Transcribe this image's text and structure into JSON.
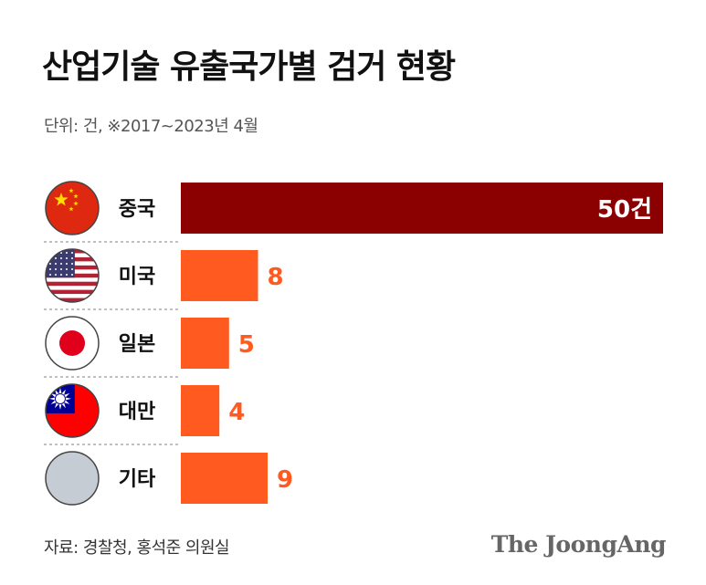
{
  "chart_data": {
    "type": "bar",
    "orientation": "horizontal",
    "title": "산업기술 유출국가별 검거 현황",
    "subtitle": "단위: 건, ※2017~2023년 4월",
    "categories": [
      "중국",
      "미국",
      "일본",
      "대만",
      "기타"
    ],
    "values": [
      50,
      8,
      5,
      4,
      9
    ],
    "value_labels": [
      "50건",
      "8",
      "5",
      "4",
      "9"
    ],
    "flags": [
      "china-flag-icon",
      "usa-flag-icon",
      "japan-flag-icon",
      "taiwan-flag-icon",
      "other-placeholder-icon"
    ],
    "colors": {
      "highlight": "#8b0000",
      "bar": "#ff5a1f",
      "separator": "#9a9a9a"
    },
    "grid": false,
    "legend": "none"
  },
  "footer": {
    "source": "자료: 경찰청, 홍석준 의원실",
    "brand": "The JoongAng"
  }
}
